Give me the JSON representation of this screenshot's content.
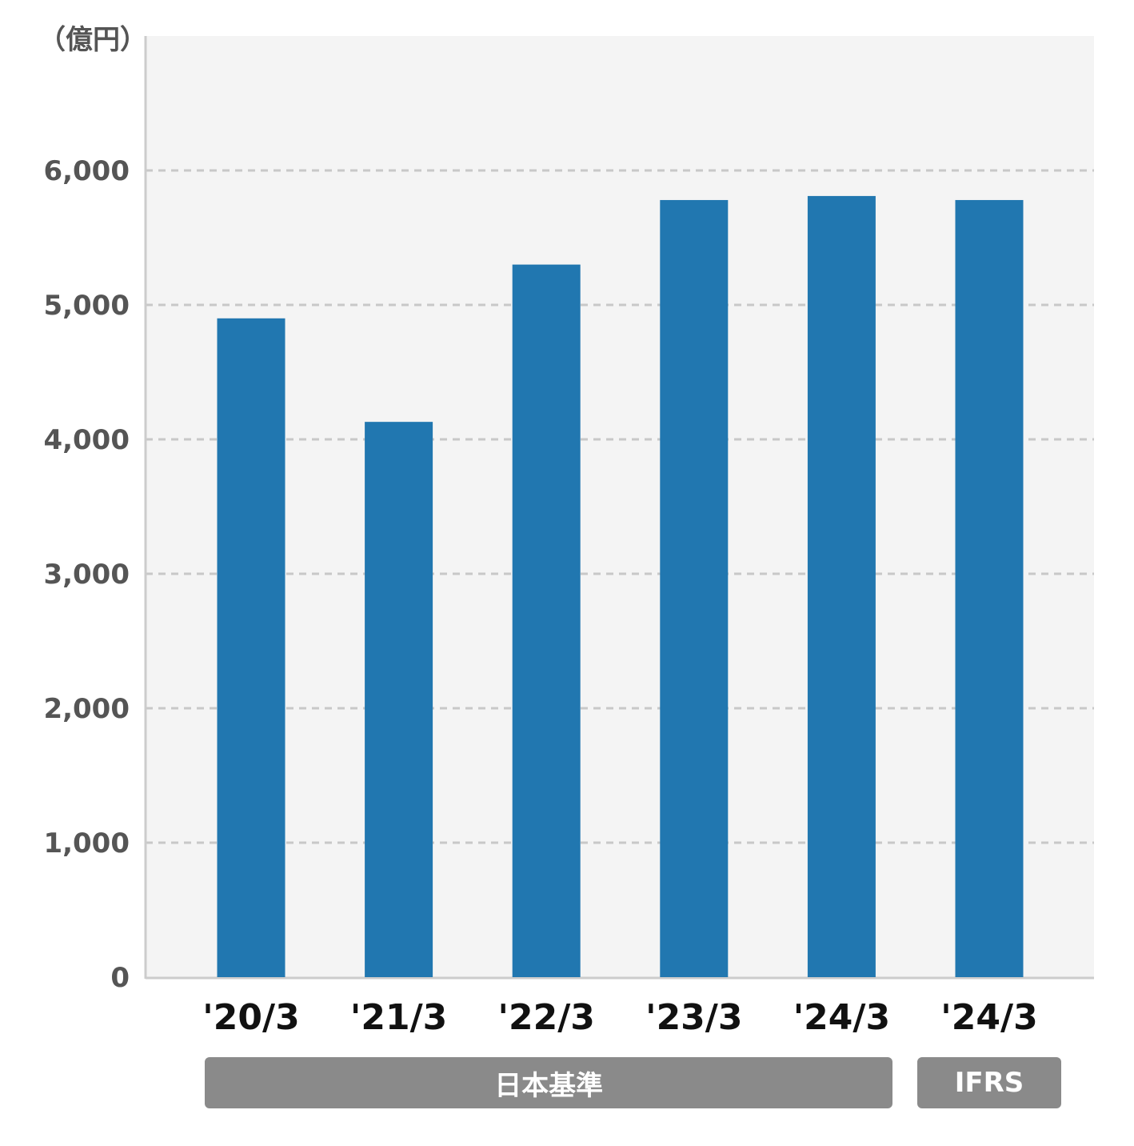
{
  "chart_data": {
    "type": "bar",
    "unit_label": "（億円）",
    "categories": [
      "'20/3",
      "'21/3",
      "'22/3",
      "'23/3",
      "'24/3",
      "'24/3"
    ],
    "values": [
      4900,
      4130,
      5300,
      5780,
      5810,
      5780
    ],
    "yticks": [
      "0",
      "1,000",
      "2,000",
      "3,000",
      "4,000",
      "5,000",
      "6,000"
    ],
    "ylim": [
      0,
      7000
    ],
    "grid": true,
    "groups": [
      {
        "label": "日本基準",
        "categories": [
          0,
          4
        ]
      },
      {
        "label": "IFRS",
        "categories": [
          5,
          5
        ]
      }
    ],
    "colors": {
      "bar": "#2177b0",
      "plot_background": "#f4f4f4",
      "grid": "#c8c8c8",
      "axis": "#cccccc",
      "group_box": "#8a8a8a"
    }
  }
}
